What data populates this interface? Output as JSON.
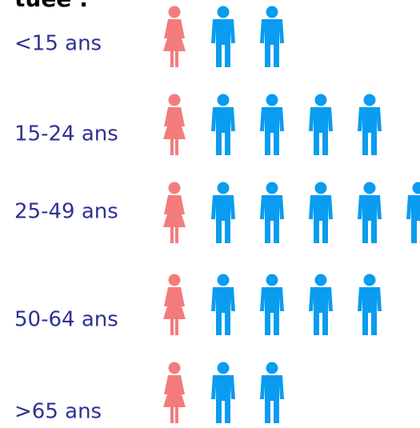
{
  "chart_data": {
    "type": "pictogram",
    "title": "tuée :",
    "categories": [
      "<15 ans",
      "15-24 ans",
      "25-49 ans",
      "50-64 ans",
      ">65 ans"
    ],
    "series": [
      {
        "name": "femmes",
        "color": "#f27c7c",
        "shape": "woman",
        "values": [
          1,
          1,
          1,
          1,
          1
        ]
      },
      {
        "name": "hommes",
        "color": "#0a9cf0",
        "shape": "man",
        "values": [
          2,
          4,
          5,
          4,
          2
        ]
      }
    ]
  }
}
